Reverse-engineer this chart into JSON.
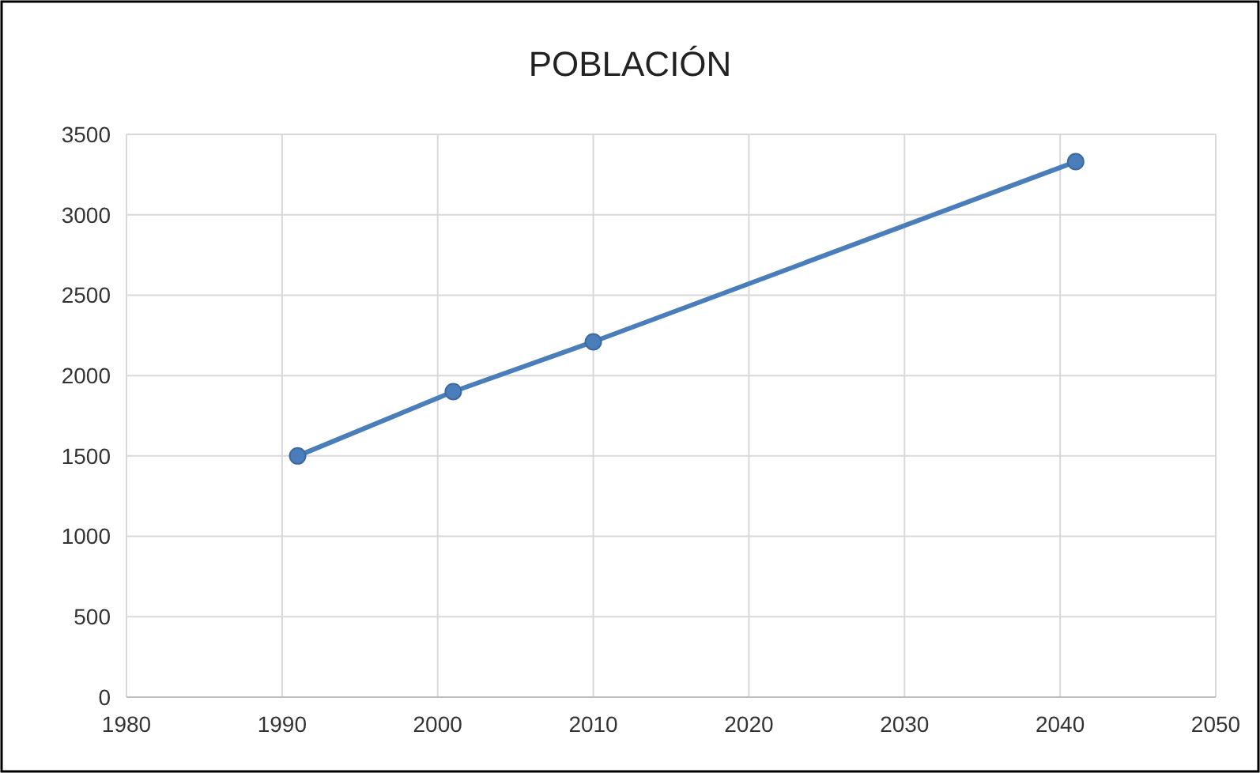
{
  "chart_data": {
    "type": "line",
    "title": "POBLACIÓN",
    "x": [
      1991,
      2001,
      2010,
      2041
    ],
    "series": [
      {
        "color": "#4a7ebb",
        "values": [
          1500,
          1900,
          2210,
          3330
        ]
      }
    ],
    "xlim": [
      1980,
      2050
    ],
    "xticks": [
      1980,
      1990,
      2000,
      2010,
      2020,
      2030,
      2040,
      2050
    ],
    "ylim": [
      0,
      3500
    ],
    "yticks": [
      0,
      500,
      1000,
      1500,
      2000,
      2500,
      3000,
      3500
    ],
    "grid": true,
    "marker": "circle",
    "line_style": "solid"
  }
}
